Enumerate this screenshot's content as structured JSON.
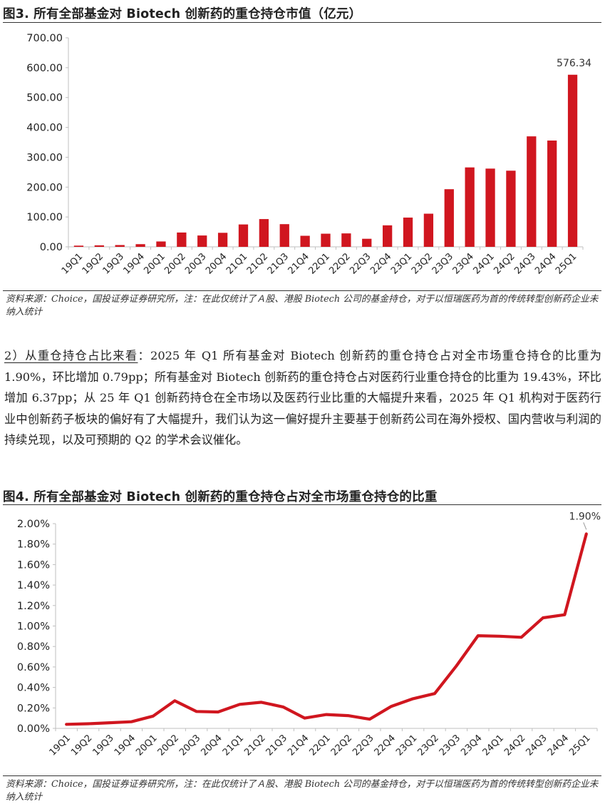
{
  "figure3": {
    "title": "图3. 所有全部基金对 Biotech 创新药的重仓持仓市值（亿元）",
    "source": "资料来源：Choice，国投证券证券研究所，注：在此仅统计了Ａ股、港股 Biotech 公司的基金持仓，对于以恒瑞医药为首的传统转型创新药企业未纳入统计",
    "chart_data": {
      "type": "bar",
      "title": "所有全部基金对 Biotech 创新药的重仓持仓市值（亿元）",
      "categories": [
        "19Q1",
        "19Q2",
        "19Q3",
        "19Q4",
        "20Q1",
        "20Q2",
        "20Q3",
        "20Q4",
        "21Q1",
        "21Q2",
        "21Q3",
        "21Q4",
        "22Q1",
        "22Q2",
        "22Q3",
        "22Q4",
        "23Q1",
        "23Q2",
        "23Q3",
        "23Q4",
        "24Q1",
        "24Q2",
        "24Q3",
        "24Q4",
        "25Q1"
      ],
      "values": [
        4,
        5,
        6,
        9,
        18,
        48,
        38,
        47,
        75,
        93,
        76,
        37,
        44,
        45,
        27,
        72,
        98,
        111,
        193,
        266,
        262,
        255,
        370,
        356,
        576.34
      ],
      "yticks": [
        "0.00",
        "100.00",
        "200.00",
        "300.00",
        "400.00",
        "500.00",
        "600.00",
        "700.00"
      ],
      "ylim": [
        0,
        700
      ],
      "data_label": "576.34",
      "color": "#d0161f"
    }
  },
  "body": {
    "lead": "2）从重仓持仓占比来看",
    "text": "：2025 年 Q1 所有基金对 Biotech 创新药的重仓持仓占对全市场重仓持仓的比重为 1.90%，环比增加 0.79pp；所有基金对 Biotech 创新药的重仓持仓占对医药行业重仓持仓的比重为 19.43%，环比增加 6.37pp；从 25 年 Q1 创新药持仓在全市场以及医药行业比重的大幅提升来看，2025 年 Q1 机构对于医药行业中创新药子板块的偏好有了大幅提升，我们认为这一偏好提升主要基于创新药公司在海外授权、国内营收与利润的持续兑现，以及可预期的 Q2 的学术会议催化。"
  },
  "figure4": {
    "title": "图4. 所有全部基金对 Biotech 创新药的重仓持仓占对全市场重仓持仓的比重",
    "source": "资料来源：Choice，国投证券证券研究所，注：在此仅统计了Ａ股、港股 Biotech 公司的基金持仓，对于以恒瑞医药为首的传统转型创新药企业未纳入统计",
    "chart_data": {
      "type": "line",
      "title": "所有全部基金对 Biotech 创新药的重仓持仓占对全市场重仓持仓的比重",
      "categories": [
        "19Q1",
        "19Q2",
        "19Q3",
        "19Q4",
        "20Q1",
        "20Q2",
        "20Q3",
        "20Q4",
        "21Q1",
        "21Q2",
        "21Q3",
        "21Q4",
        "22Q1",
        "22Q2",
        "22Q3",
        "22Q4",
        "23Q1",
        "23Q2",
        "23Q3",
        "23Q4",
        "24Q1",
        "24Q2",
        "24Q3",
        "24Q4",
        "25Q1"
      ],
      "values": [
        0.04,
        0.045,
        0.055,
        0.065,
        0.12,
        0.27,
        0.165,
        0.16,
        0.235,
        0.255,
        0.21,
        0.1,
        0.135,
        0.125,
        0.09,
        0.215,
        0.29,
        0.34,
        0.61,
        0.905,
        0.9,
        0.89,
        1.08,
        1.11,
        1.9
      ],
      "yticks": [
        "0.00%",
        "0.20%",
        "0.40%",
        "0.60%",
        "0.80%",
        "1.00%",
        "1.20%",
        "1.40%",
        "1.60%",
        "1.80%",
        "2.00%"
      ],
      "ylim": [
        0,
        2.0
      ],
      "data_label": "1.90%",
      "color": "#d0161f"
    }
  }
}
